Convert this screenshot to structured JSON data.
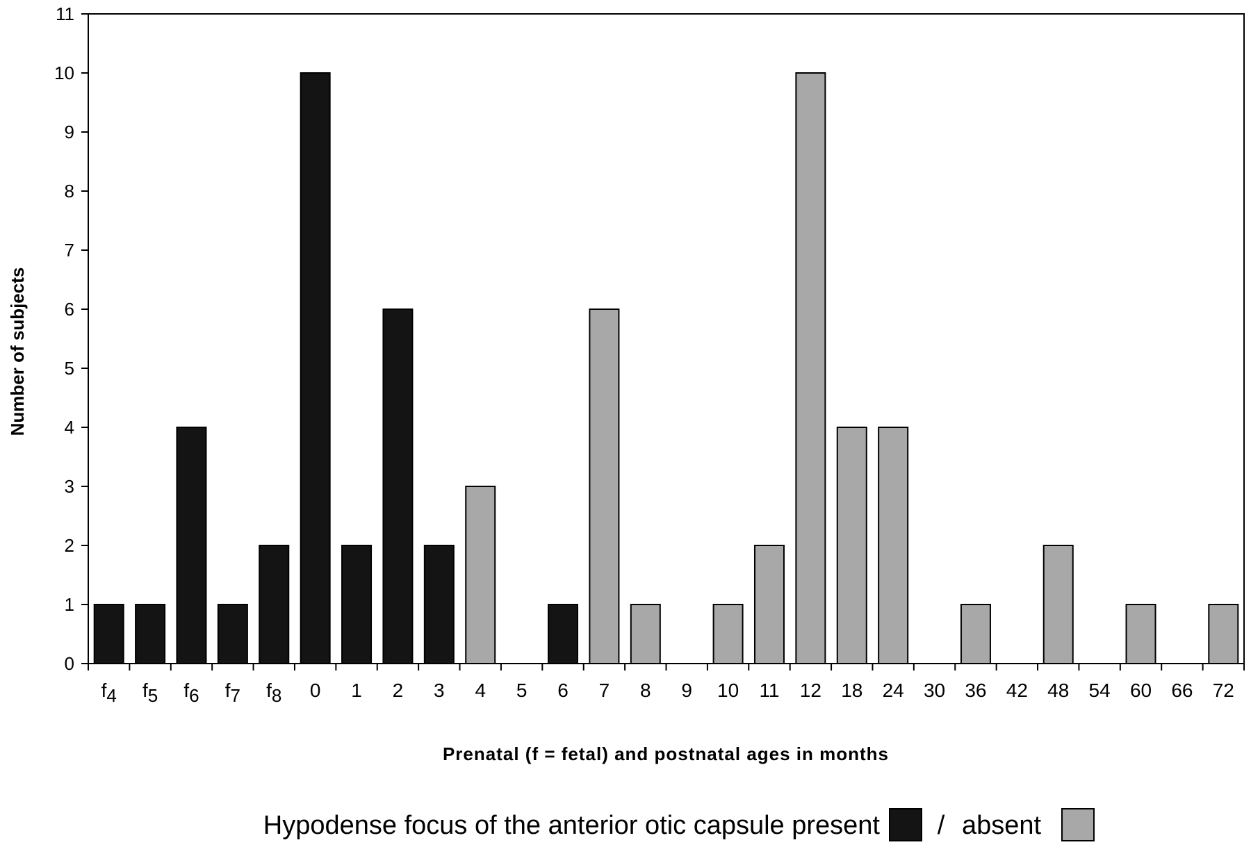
{
  "chart_data": {
    "type": "bar",
    "title": "",
    "xlabel": "Prenatal (f = fetal) and postnatal ages in months",
    "ylabel": "Number of subjects",
    "ylim": [
      0,
      11
    ],
    "yticks": [
      "0",
      "1",
      "2",
      "3",
      "4",
      "5",
      "6",
      "7",
      "8",
      "9",
      "10",
      "11"
    ],
    "grid": false,
    "categories": [
      {
        "main": "f",
        "sub": "4"
      },
      {
        "main": "f",
        "sub": "5"
      },
      {
        "main": "f",
        "sub": "6"
      },
      {
        "main": "f",
        "sub": "7"
      },
      {
        "main": "f",
        "sub": "8"
      },
      {
        "main": "0",
        "sub": ""
      },
      {
        "main": "1",
        "sub": ""
      },
      {
        "main": "2",
        "sub": ""
      },
      {
        "main": "3",
        "sub": ""
      },
      {
        "main": "4",
        "sub": ""
      },
      {
        "main": "5",
        "sub": ""
      },
      {
        "main": "6",
        "sub": ""
      },
      {
        "main": "7",
        "sub": ""
      },
      {
        "main": "8",
        "sub": ""
      },
      {
        "main": "9",
        "sub": ""
      },
      {
        "main": "10",
        "sub": ""
      },
      {
        "main": "11",
        "sub": ""
      },
      {
        "main": "12",
        "sub": ""
      },
      {
        "main": "18",
        "sub": ""
      },
      {
        "main": "24",
        "sub": ""
      },
      {
        "main": "30",
        "sub": ""
      },
      {
        "main": "36",
        "sub": ""
      },
      {
        "main": "42",
        "sub": ""
      },
      {
        "main": "48",
        "sub": ""
      },
      {
        "main": "54",
        "sub": ""
      },
      {
        "main": "60",
        "sub": ""
      },
      {
        "main": "66",
        "sub": ""
      },
      {
        "main": "72",
        "sub": ""
      }
    ],
    "series": [
      {
        "name": "present",
        "color": "#141414",
        "values": [
          1,
          1,
          4,
          1,
          2,
          10,
          2,
          6,
          2,
          0,
          0,
          1,
          0,
          0,
          0,
          0,
          0,
          0,
          0,
          0,
          0,
          0,
          0,
          0,
          0,
          0,
          0,
          0
        ]
      },
      {
        "name": "absent",
        "color": "#a8a8a8",
        "values": [
          0,
          0,
          0,
          0,
          0,
          0,
          0,
          0,
          0,
          3,
          0,
          0,
          6,
          1,
          0,
          1,
          2,
          10,
          4,
          4,
          0,
          1,
          0,
          2,
          0,
          1,
          0,
          1
        ]
      }
    ],
    "legend": {
      "position": "bottom",
      "prefix": "Hypodense focus of the anterior otic capsule present",
      "separator": "/",
      "absent_label": "absent"
    }
  }
}
